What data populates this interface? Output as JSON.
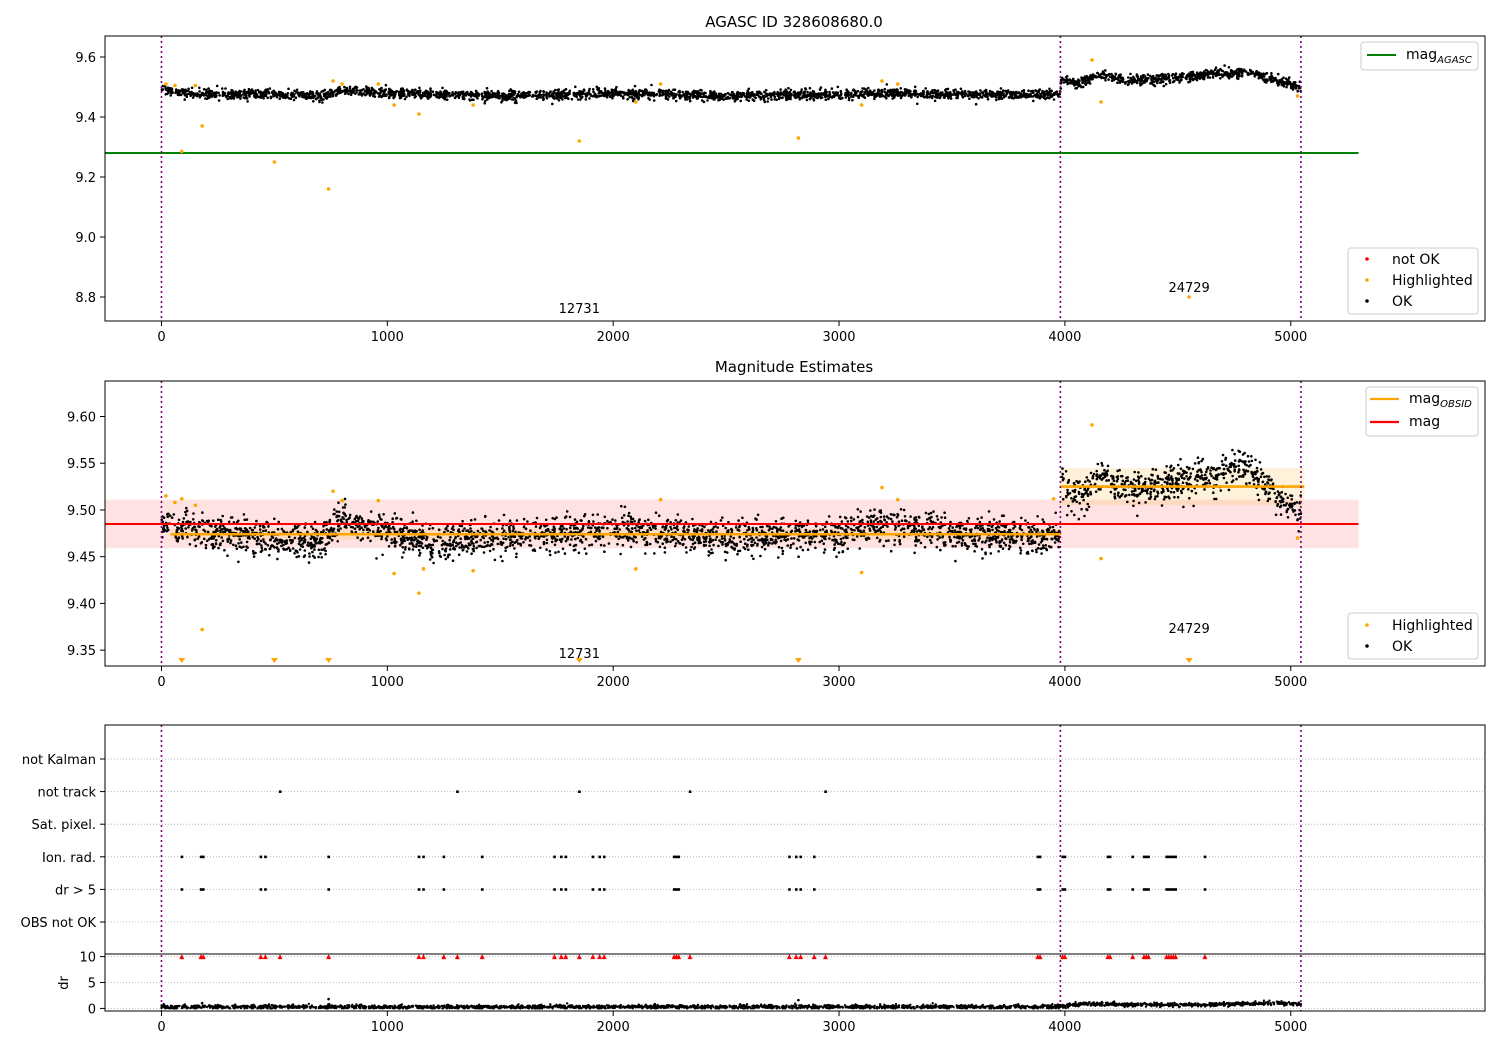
{
  "chart_data": [
    {
      "type": "scatter",
      "title": "AGASC ID 328608680.0",
      "xlim": [
        -250,
        5860
      ],
      "ylim": [
        8.72,
        9.67
      ],
      "x_ticks": [
        "0",
        "1000",
        "2000",
        "3000",
        "4000",
        "5000"
      ],
      "y_ticks": [
        "8.8",
        "9.0",
        "9.2",
        "9.4",
        "9.6"
      ],
      "vlines": [
        0,
        3980,
        5045
      ],
      "reference_line": {
        "name": "mag_AGASC",
        "value": 9.28,
        "color": "#008000"
      },
      "series": [
        {
          "name": "not OK",
          "color": "#ff0000",
          "points": []
        },
        {
          "name": "Highlighted",
          "color": "#ffa500",
          "points": [
            [
              20,
              9.51
            ],
            [
              60,
              9.505
            ],
            [
              90,
              9.285
            ],
            [
              150,
              9.505
            ],
            [
              180,
              9.37
            ],
            [
              500,
              9.25
            ],
            [
              740,
              9.16
            ],
            [
              760,
              9.52
            ],
            [
              800,
              9.51
            ],
            [
              960,
              9.51
            ],
            [
              1030,
              9.44
            ],
            [
              1140,
              9.41
            ],
            [
              1380,
              9.44
            ],
            [
              1850,
              9.32
            ],
            [
              2100,
              9.45
            ],
            [
              2210,
              9.51
            ],
            [
              2820,
              9.33
            ],
            [
              3100,
              9.44
            ],
            [
              3190,
              9.52
            ],
            [
              3260,
              9.51
            ],
            [
              4120,
              9.59
            ],
            [
              4160,
              9.45
            ],
            [
              4550,
              8.8
            ],
            [
              5030,
              9.47
            ]
          ]
        },
        {
          "name": "OK",
          "color": "#000000"
        }
      ],
      "ok_trend": [
        [
          0,
          9.49
        ],
        [
          100,
          9.48
        ],
        [
          300,
          9.475
        ],
        [
          500,
          9.475
        ],
        [
          700,
          9.47
        ],
        [
          800,
          9.49
        ],
        [
          1000,
          9.48
        ],
        [
          1500,
          9.47
        ],
        [
          2000,
          9.48
        ],
        [
          2500,
          9.47
        ],
        [
          3000,
          9.475
        ],
        [
          3200,
          9.48
        ],
        [
          3500,
          9.475
        ],
        [
          3975,
          9.475
        ],
        [
          3985,
          9.53
        ],
        [
          4050,
          9.51
        ],
        [
          4150,
          9.54
        ],
        [
          4300,
          9.52
        ],
        [
          4600,
          9.54
        ],
        [
          4800,
          9.55
        ],
        [
          4900,
          9.53
        ],
        [
          5045,
          9.5
        ]
      ],
      "annotations": [
        {
          "text": "12731",
          "x": 1850,
          "y": 8.72
        },
        {
          "text": "24729",
          "x": 4550,
          "y": 8.79
        }
      ]
    },
    {
      "type": "scatter",
      "title": "Magnitude Estimates",
      "xlim": [
        -250,
        5860
      ],
      "ylim": [
        9.333,
        9.638
      ],
      "x_ticks": [
        "0",
        "1000",
        "2000",
        "3000",
        "4000",
        "5000"
      ],
      "y_ticks": [
        "9.35",
        "9.40",
        "9.45",
        "9.50",
        "9.55",
        "9.60"
      ],
      "vlines": [
        0,
        3980,
        5045
      ],
      "mag": {
        "name": "mag",
        "value": 9.485,
        "band": [
          9.459,
          9.511
        ],
        "color": "#ff0000",
        "x_range": [
          0,
          5300
        ]
      },
      "mag_obsid": [
        {
          "x_range": [
            40,
            3980
          ],
          "value": 9.474,
          "band": [
            9.468,
            9.48
          ]
        },
        {
          "x_range": [
            3980,
            5060
          ],
          "value": 9.525,
          "band": [
            9.505,
            9.545
          ]
        }
      ],
      "series": [
        {
          "name": "Highlighted",
          "color": "#ffa500",
          "points": [
            [
              20,
              9.515
            ],
            [
              60,
              9.508
            ],
            [
              90,
              9.512
            ],
            [
              150,
              9.505
            ],
            [
              180,
              9.372
            ],
            [
              760,
              9.52
            ],
            [
              800,
              9.51
            ],
            [
              960,
              9.51
            ],
            [
              1030,
              9.432
            ],
            [
              1140,
              9.411
            ],
            [
              1160,
              9.437
            ],
            [
              1380,
              9.435
            ],
            [
              2100,
              9.437
            ],
            [
              2210,
              9.511
            ],
            [
              3100,
              9.433
            ],
            [
              3190,
              9.524
            ],
            [
              3260,
              9.511
            ],
            [
              3950,
              9.512
            ],
            [
              4120,
              9.591
            ],
            [
              4160,
              9.448
            ],
            [
              5030,
              9.47
            ]
          ]
        },
        {
          "name": "OK",
          "color": "#000000"
        }
      ],
      "offscale_markers": [
        90,
        500,
        740,
        1850,
        2820,
        4550
      ],
      "ok_trend": [
        [
          0,
          9.485
        ],
        [
          100,
          9.48
        ],
        [
          200,
          9.475
        ],
        [
          500,
          9.47
        ],
        [
          700,
          9.465
        ],
        [
          800,
          9.49
        ],
        [
          900,
          9.48
        ],
        [
          1000,
          9.478
        ],
        [
          1200,
          9.465
        ],
        [
          1500,
          9.47
        ],
        [
          2000,
          9.48
        ],
        [
          2500,
          9.47
        ],
        [
          3000,
          9.475
        ],
        [
          3200,
          9.485
        ],
        [
          3500,
          9.475
        ],
        [
          3975,
          9.47
        ],
        [
          3985,
          9.53
        ],
        [
          4050,
          9.51
        ],
        [
          4150,
          9.535
        ],
        [
          4300,
          9.52
        ],
        [
          4600,
          9.535
        ],
        [
          4800,
          9.545
        ],
        [
          4900,
          9.525
        ],
        [
          5045,
          9.495
        ]
      ],
      "annotations": [
        {
          "text": "12731",
          "x": 1850,
          "y": 9.333
        },
        {
          "text": "24729",
          "x": 4550,
          "y": 9.36
        }
      ]
    },
    {
      "type": "scatter",
      "xlim": [
        -250,
        5860
      ],
      "vlines": [
        0,
        3980,
        5045
      ],
      "flag_rows": [
        "not Kalman",
        "not track",
        "Sat. pixel.",
        "Ion. rad.",
        "dr > 5",
        "OBS not OK"
      ],
      "flags": {
        "not track": [
          525,
          1310,
          1850,
          2340,
          2940
        ],
        "Ion. rad.": [
          90,
          175,
          185,
          440,
          460,
          740,
          1140,
          1160,
          1250,
          1420,
          1740,
          1770,
          1790,
          1910,
          1940,
          1960,
          2270,
          2280,
          2290,
          2780,
          2810,
          2830,
          2890,
          3880,
          3890,
          3990,
          4000,
          4190,
          4200,
          4300,
          4350,
          4360,
          4370,
          4450,
          4460,
          4470,
          4480,
          4490,
          4620
        ],
        "dr > 5": [
          90,
          175,
          185,
          440,
          460,
          740,
          1140,
          1160,
          1250,
          1420,
          1740,
          1770,
          1790,
          1910,
          1940,
          1960,
          2270,
          2280,
          2290,
          2780,
          2810,
          2830,
          2890,
          3880,
          3890,
          3990,
          4000,
          4190,
          4200,
          4300,
          4350,
          4360,
          4370,
          4450,
          4460,
          4470,
          4480,
          4490,
          4620
        ]
      },
      "dr_panel": {
        "ylabel": "dr",
        "y_ticks": [
          "0",
          "5",
          "10"
        ],
        "ylim": [
          -0.5,
          10.5
        ],
        "clipped_at_10": [
          90,
          175,
          185,
          440,
          460,
          525,
          740,
          1140,
          1160,
          1250,
          1310,
          1420,
          1740,
          1770,
          1790,
          1850,
          1910,
          1940,
          1960,
          2270,
          2280,
          2290,
          2340,
          2780,
          2810,
          2830,
          2890,
          2940,
          3880,
          3890,
          3990,
          4000,
          4190,
          4200,
          4300,
          4350,
          4360,
          4370,
          4450,
          4460,
          4470,
          4480,
          4490,
          4620
        ],
        "outliers": [
          [
            180,
            1.0
          ],
          [
            740,
            1.8
          ],
          [
            2820,
            1.6
          ]
        ],
        "trend": [
          [
            0,
            0.3
          ],
          [
            500,
            0.3
          ],
          [
            1000,
            0.25
          ],
          [
            2000,
            0.3
          ],
          [
            3000,
            0.3
          ],
          [
            3500,
            0.3
          ],
          [
            3975,
            0.3
          ],
          [
            4100,
            0.9
          ],
          [
            4300,
            0.7
          ],
          [
            4600,
            0.7
          ],
          [
            4900,
            1.0
          ],
          [
            5045,
            0.9
          ]
        ]
      },
      "x_ticks": [
        "0",
        "1000",
        "2000",
        "3000",
        "4000",
        "5000"
      ]
    }
  ],
  "legend_top": {
    "line": {
      "label": "mag",
      "sub": "AGASC",
      "color": "#008000"
    },
    "points": [
      {
        "label": "not OK",
        "color": "#ff0000"
      },
      {
        "label": "Highlighted",
        "color": "#ffa500"
      },
      {
        "label": "OK",
        "color": "#000000"
      }
    ]
  },
  "legend_mid": {
    "lines": [
      {
        "label": "mag",
        "sub": "OBSID",
        "color": "#ffa500"
      },
      {
        "label": "mag",
        "sub": "",
        "color": "#ff0000"
      }
    ],
    "points": [
      {
        "label": "Highlighted",
        "color": "#ffa500"
      },
      {
        "label": "OK",
        "color": "#000000"
      }
    ]
  }
}
